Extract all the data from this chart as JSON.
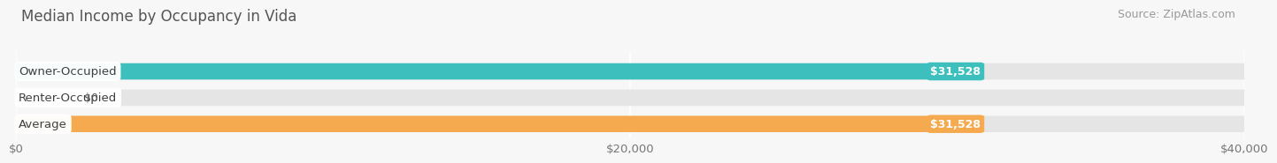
{
  "title": "Median Income by Occupancy in Vida",
  "source": "Source: ZipAtlas.com",
  "categories": [
    "Owner-Occupied",
    "Renter-Occupied",
    "Average"
  ],
  "values": [
    31528,
    0,
    31528
  ],
  "bar_colors": [
    "#3dbfbe",
    "#c4a8d4",
    "#f5aa50"
  ],
  "bar_labels": [
    "$31,528",
    "$0",
    "$31,528"
  ],
  "xlim": [
    0,
    40000
  ],
  "xticks": [
    0,
    20000,
    40000
  ],
  "xtick_labels": [
    "$0",
    "$20,000",
    "$40,000"
  ],
  "bg_color": "#f7f7f7",
  "bar_bg_color": "#e5e5e5",
  "title_fontsize": 12,
  "label_fontsize": 9.5,
  "value_fontsize": 9,
  "source_fontsize": 9
}
